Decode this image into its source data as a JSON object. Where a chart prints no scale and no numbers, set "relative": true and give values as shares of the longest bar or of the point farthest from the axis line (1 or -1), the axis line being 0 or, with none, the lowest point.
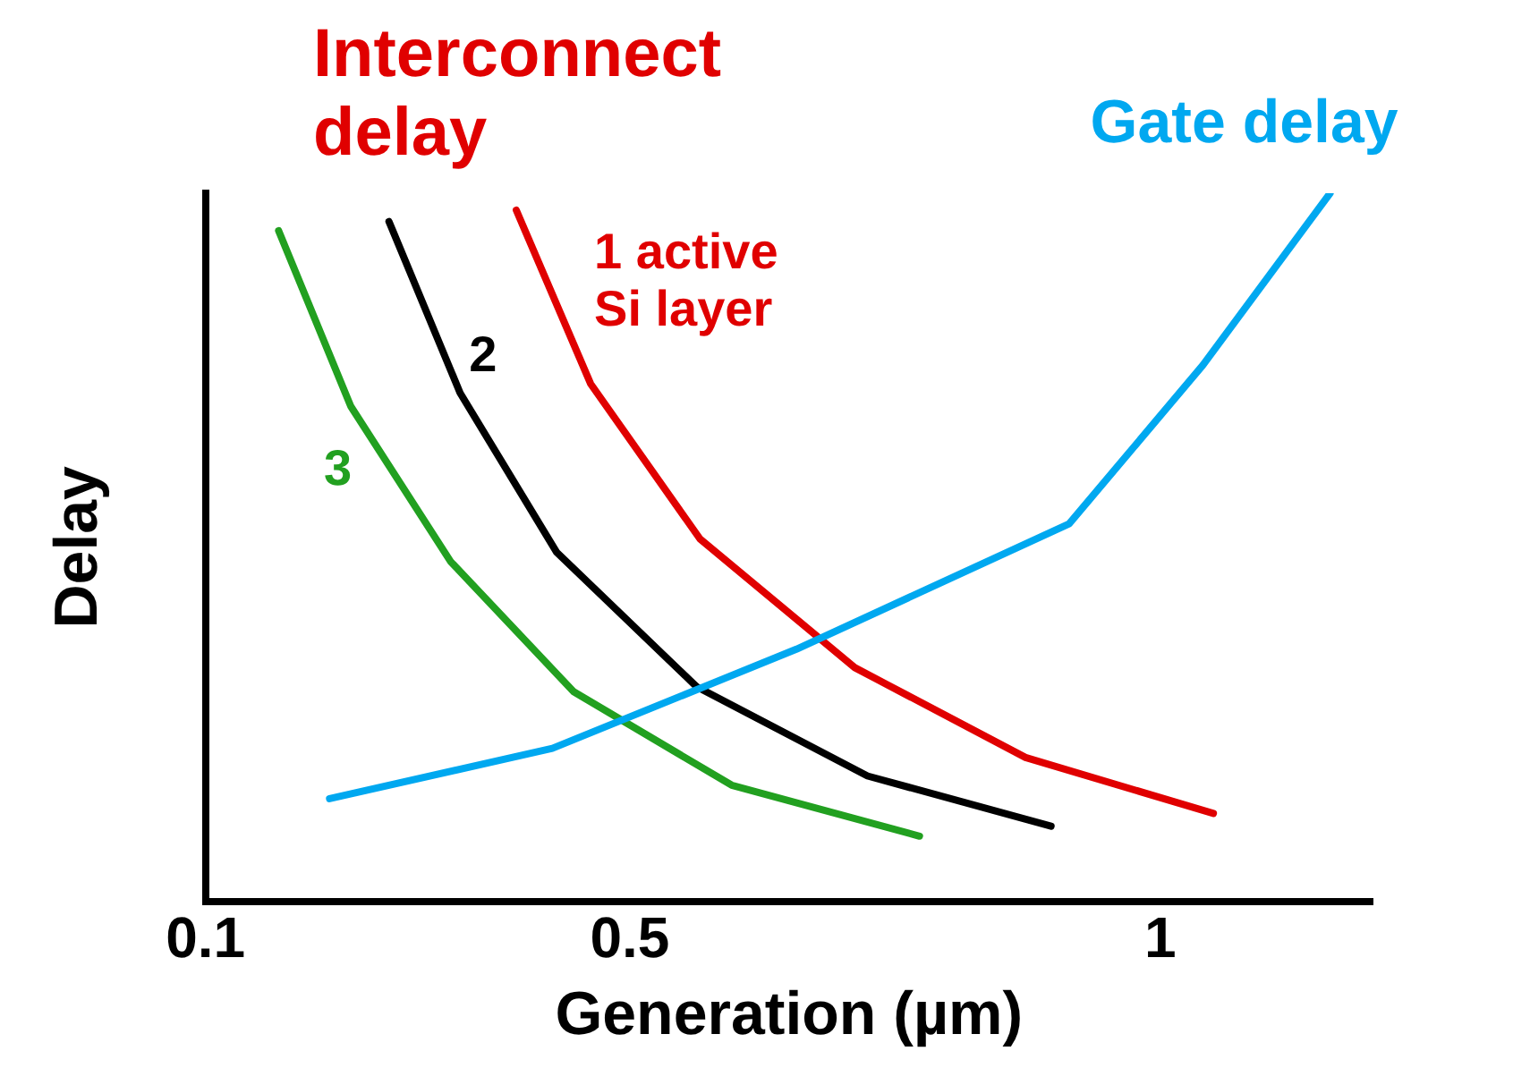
{
  "chart_data": {
    "type": "line",
    "xlabel": "Generation (µm)",
    "ylabel": "Delay",
    "relative": true,
    "xlim": [
      0.1,
      1.2
    ],
    "xticks": [
      0.1,
      0.5,
      1
    ],
    "grid": false,
    "legend": false,
    "marker": "none",
    "line_style": "solid",
    "annotations": [
      "Interconnect delay"
    ],
    "series": [
      {
        "name": "Gate delay",
        "color": "#00a8f0",
        "x": [
          0.217,
          0.427,
          0.657,
          0.914,
          1.04,
          1.16
        ],
        "values": [
          0.145,
          0.216,
          0.356,
          0.533,
          0.757,
          1
        ]
      },
      {
        "name": "1 active Si layer",
        "color": "#e00000",
        "x": [
          0.393,
          0.463,
          0.566,
          0.712,
          0.873,
          1.05
        ],
        "values": [
          0.976,
          0.731,
          0.512,
          0.33,
          0.203,
          0.124
        ]
      },
      {
        "name": "2",
        "color": "#000000",
        "x": [
          0.273,
          0.34,
          0.431,
          0.563,
          0.724,
          0.897
        ],
        "values": [
          0.96,
          0.718,
          0.493,
          0.303,
          0.177,
          0.106
        ]
      },
      {
        "name": "3",
        "color": "#22a020",
        "x": [
          0.169,
          0.237,
          0.331,
          0.447,
          0.596,
          0.773
        ],
        "values": [
          0.947,
          0.699,
          0.48,
          0.296,
          0.164,
          0.092
        ]
      }
    ]
  }
}
